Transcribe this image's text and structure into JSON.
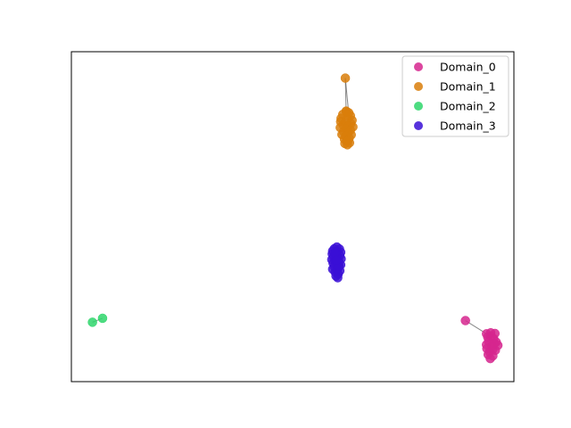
{
  "chart_data": {
    "type": "scatter",
    "title": "",
    "xlabel": "",
    "ylabel": "",
    "xlim": [
      -5,
      100
    ],
    "ylim": [
      -5,
      95
    ],
    "ticks": "none",
    "grid": false,
    "legend": {
      "location": "upper right"
    },
    "series": [
      {
        "name": "Domain_0",
        "color": "#d6268e",
        "points": [
          [
            88.5,
            13.5
          ],
          [
            93.5,
            9.5
          ],
          [
            94.5,
            9.8
          ],
          [
            95.5,
            9.6
          ],
          [
            93.8,
            8.5
          ],
          [
            95.2,
            8.0
          ],
          [
            94.0,
            7.2
          ],
          [
            95.8,
            7.0
          ],
          [
            96.2,
            6.0
          ],
          [
            93.5,
            6.2
          ],
          [
            94.8,
            5.8
          ],
          [
            95.0,
            4.8
          ],
          [
            94.2,
            4.0
          ],
          [
            95.6,
            4.5
          ],
          [
            93.9,
            3.2
          ],
          [
            95.0,
            2.8
          ],
          [
            94.4,
            2.0
          ],
          [
            95.4,
            6.6
          ],
          [
            94.6,
            8.8
          ],
          [
            93.6,
            5.0
          ]
        ],
        "edges": [
          [
            0,
            1
          ]
        ]
      },
      {
        "name": "Domain_1",
        "color": "#d97e0a",
        "points": [
          [
            60.0,
            87.0
          ],
          [
            60.2,
            77.0
          ],
          [
            60.8,
            76.5
          ],
          [
            59.4,
            76.0
          ],
          [
            61.2,
            75.6
          ],
          [
            59.0,
            74.8
          ],
          [
            60.5,
            74.6
          ],
          [
            61.6,
            74.2
          ],
          [
            58.9,
            73.8
          ],
          [
            60.0,
            73.5
          ],
          [
            61.3,
            73.2
          ],
          [
            59.5,
            72.8
          ],
          [
            60.7,
            72.5
          ],
          [
            61.8,
            72.2
          ],
          [
            58.8,
            72.0
          ],
          [
            60.2,
            71.6
          ],
          [
            61.2,
            71.2
          ],
          [
            59.6,
            70.8
          ],
          [
            60.6,
            70.4
          ],
          [
            59.2,
            69.9
          ],
          [
            61.4,
            69.8
          ],
          [
            60.1,
            69.4
          ],
          [
            60.9,
            68.8
          ],
          [
            59.8,
            68.5
          ],
          [
            60.4,
            67.9
          ],
          [
            61.0,
            67.4
          ],
          [
            59.9,
            67.2
          ],
          [
            60.5,
            66.8
          ],
          [
            60.3,
            76.8
          ],
          [
            60.6,
            68.0
          ]
        ],
        "edges": [
          [
            0,
            1
          ],
          [
            0,
            2
          ]
        ]
      },
      {
        "name": "Domain_2",
        "color": "#2ed66b",
        "points": [
          [
            0.0,
            13.0
          ],
          [
            2.4,
            14.2
          ]
        ],
        "edges": [
          [
            0,
            1
          ]
        ]
      },
      {
        "name": "Domain_3",
        "color": "#3a0fd6",
        "points": [
          [
            58.0,
            35.8
          ],
          [
            57.4,
            35.3
          ],
          [
            58.6,
            35.2
          ],
          [
            57.0,
            34.6
          ],
          [
            58.0,
            34.5
          ],
          [
            58.9,
            34.2
          ],
          [
            56.9,
            33.7
          ],
          [
            57.8,
            33.6
          ],
          [
            58.7,
            33.2
          ],
          [
            57.2,
            32.8
          ],
          [
            58.2,
            32.5
          ],
          [
            59.0,
            32.2
          ],
          [
            56.8,
            32.0
          ],
          [
            57.6,
            31.6
          ],
          [
            58.5,
            31.3
          ],
          [
            57.1,
            30.9
          ],
          [
            58.1,
            30.6
          ],
          [
            58.9,
            30.4
          ],
          [
            57.4,
            29.9
          ],
          [
            58.4,
            29.6
          ],
          [
            57.0,
            29.1
          ],
          [
            58.0,
            28.9
          ],
          [
            58.7,
            28.6
          ],
          [
            57.6,
            28.2
          ],
          [
            58.3,
            27.6
          ],
          [
            57.8,
            27.0
          ],
          [
            58.2,
            26.5
          ],
          [
            57.5,
            34.0
          ],
          [
            58.5,
            30.0
          ],
          [
            57.9,
            31.8
          ]
        ],
        "edges": []
      }
    ]
  }
}
